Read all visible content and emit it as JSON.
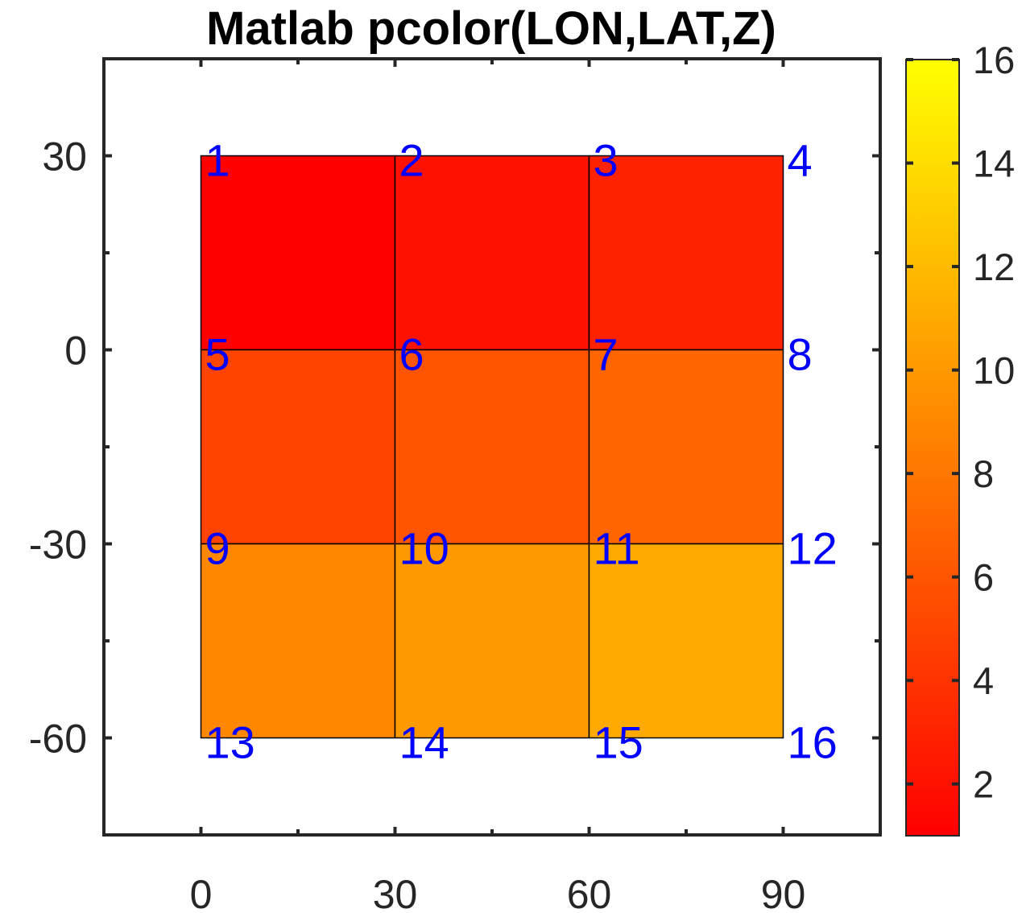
{
  "chart_data": {
    "type": "heatmap",
    "title": "Matlab pcolor(LON,LAT,Z)",
    "xlabel": "",
    "ylabel": "",
    "x_edges": [
      0,
      30,
      60,
      90
    ],
    "y_edges": [
      30,
      0,
      -30,
      -60
    ],
    "xlim": [
      -15,
      105
    ],
    "ylim": [
      -75,
      45
    ],
    "x_ticks": [
      0,
      30,
      60,
      90
    ],
    "x_tick_labels": [
      "0",
      "30",
      "60",
      "90"
    ],
    "y_ticks": [
      30,
      0,
      -30,
      -60
    ],
    "y_tick_labels": [
      "30",
      "0",
      "-30",
      "-60"
    ],
    "z": [
      [
        1,
        2,
        3,
        4
      ],
      [
        5,
        6,
        7,
        8
      ],
      [
        9,
        10,
        11,
        12
      ],
      [
        13,
        14,
        15,
        16
      ]
    ],
    "node_labels": [
      [
        "1",
        "2",
        "3",
        "4"
      ],
      [
        "5",
        "6",
        "7",
        "8"
      ],
      [
        "9",
        "10",
        "11",
        "12"
      ],
      [
        "13",
        "14",
        "15",
        "16"
      ]
    ],
    "node_label_color": "#0000ff",
    "grid": false,
    "colormap": "autumn",
    "colormap_colors": [
      "#ff0000",
      "#ffff00"
    ],
    "colorbar": {
      "location": "right",
      "clim": [
        1,
        16
      ],
      "ticks": [
        2,
        4,
        6,
        8,
        10,
        12,
        14,
        16
      ],
      "tick_labels": [
        "2",
        "4",
        "6",
        "8",
        "10",
        "12",
        "14",
        "16"
      ]
    }
  }
}
